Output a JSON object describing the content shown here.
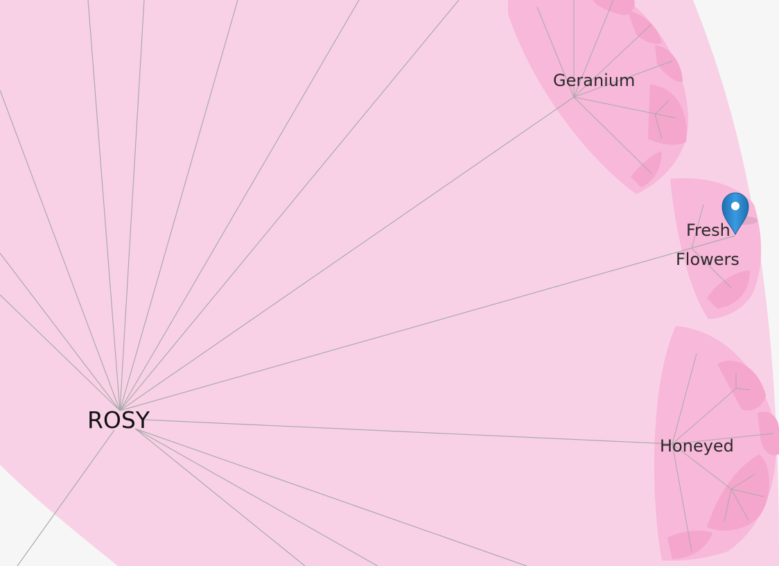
{
  "diagram": {
    "root": {
      "label": "ROSY"
    },
    "children": [
      {
        "id": "geranium",
        "label": "Geranium"
      },
      {
        "id": "fresh-flowers",
        "label_line1": "Fresh",
        "label_line2": "Flowers"
      },
      {
        "id": "honeyed",
        "label": "Honeyed"
      }
    ]
  },
  "colors": {
    "background": "#f6f6f6",
    "root_sector": "#f9d1e6",
    "child_sector": "#f7b8d9",
    "grandchild_sector": "#f5a6cd",
    "edge": "#a9a9a9",
    "marker": "#2b86c8"
  },
  "marker": {
    "icon": "map-pin-icon"
  }
}
